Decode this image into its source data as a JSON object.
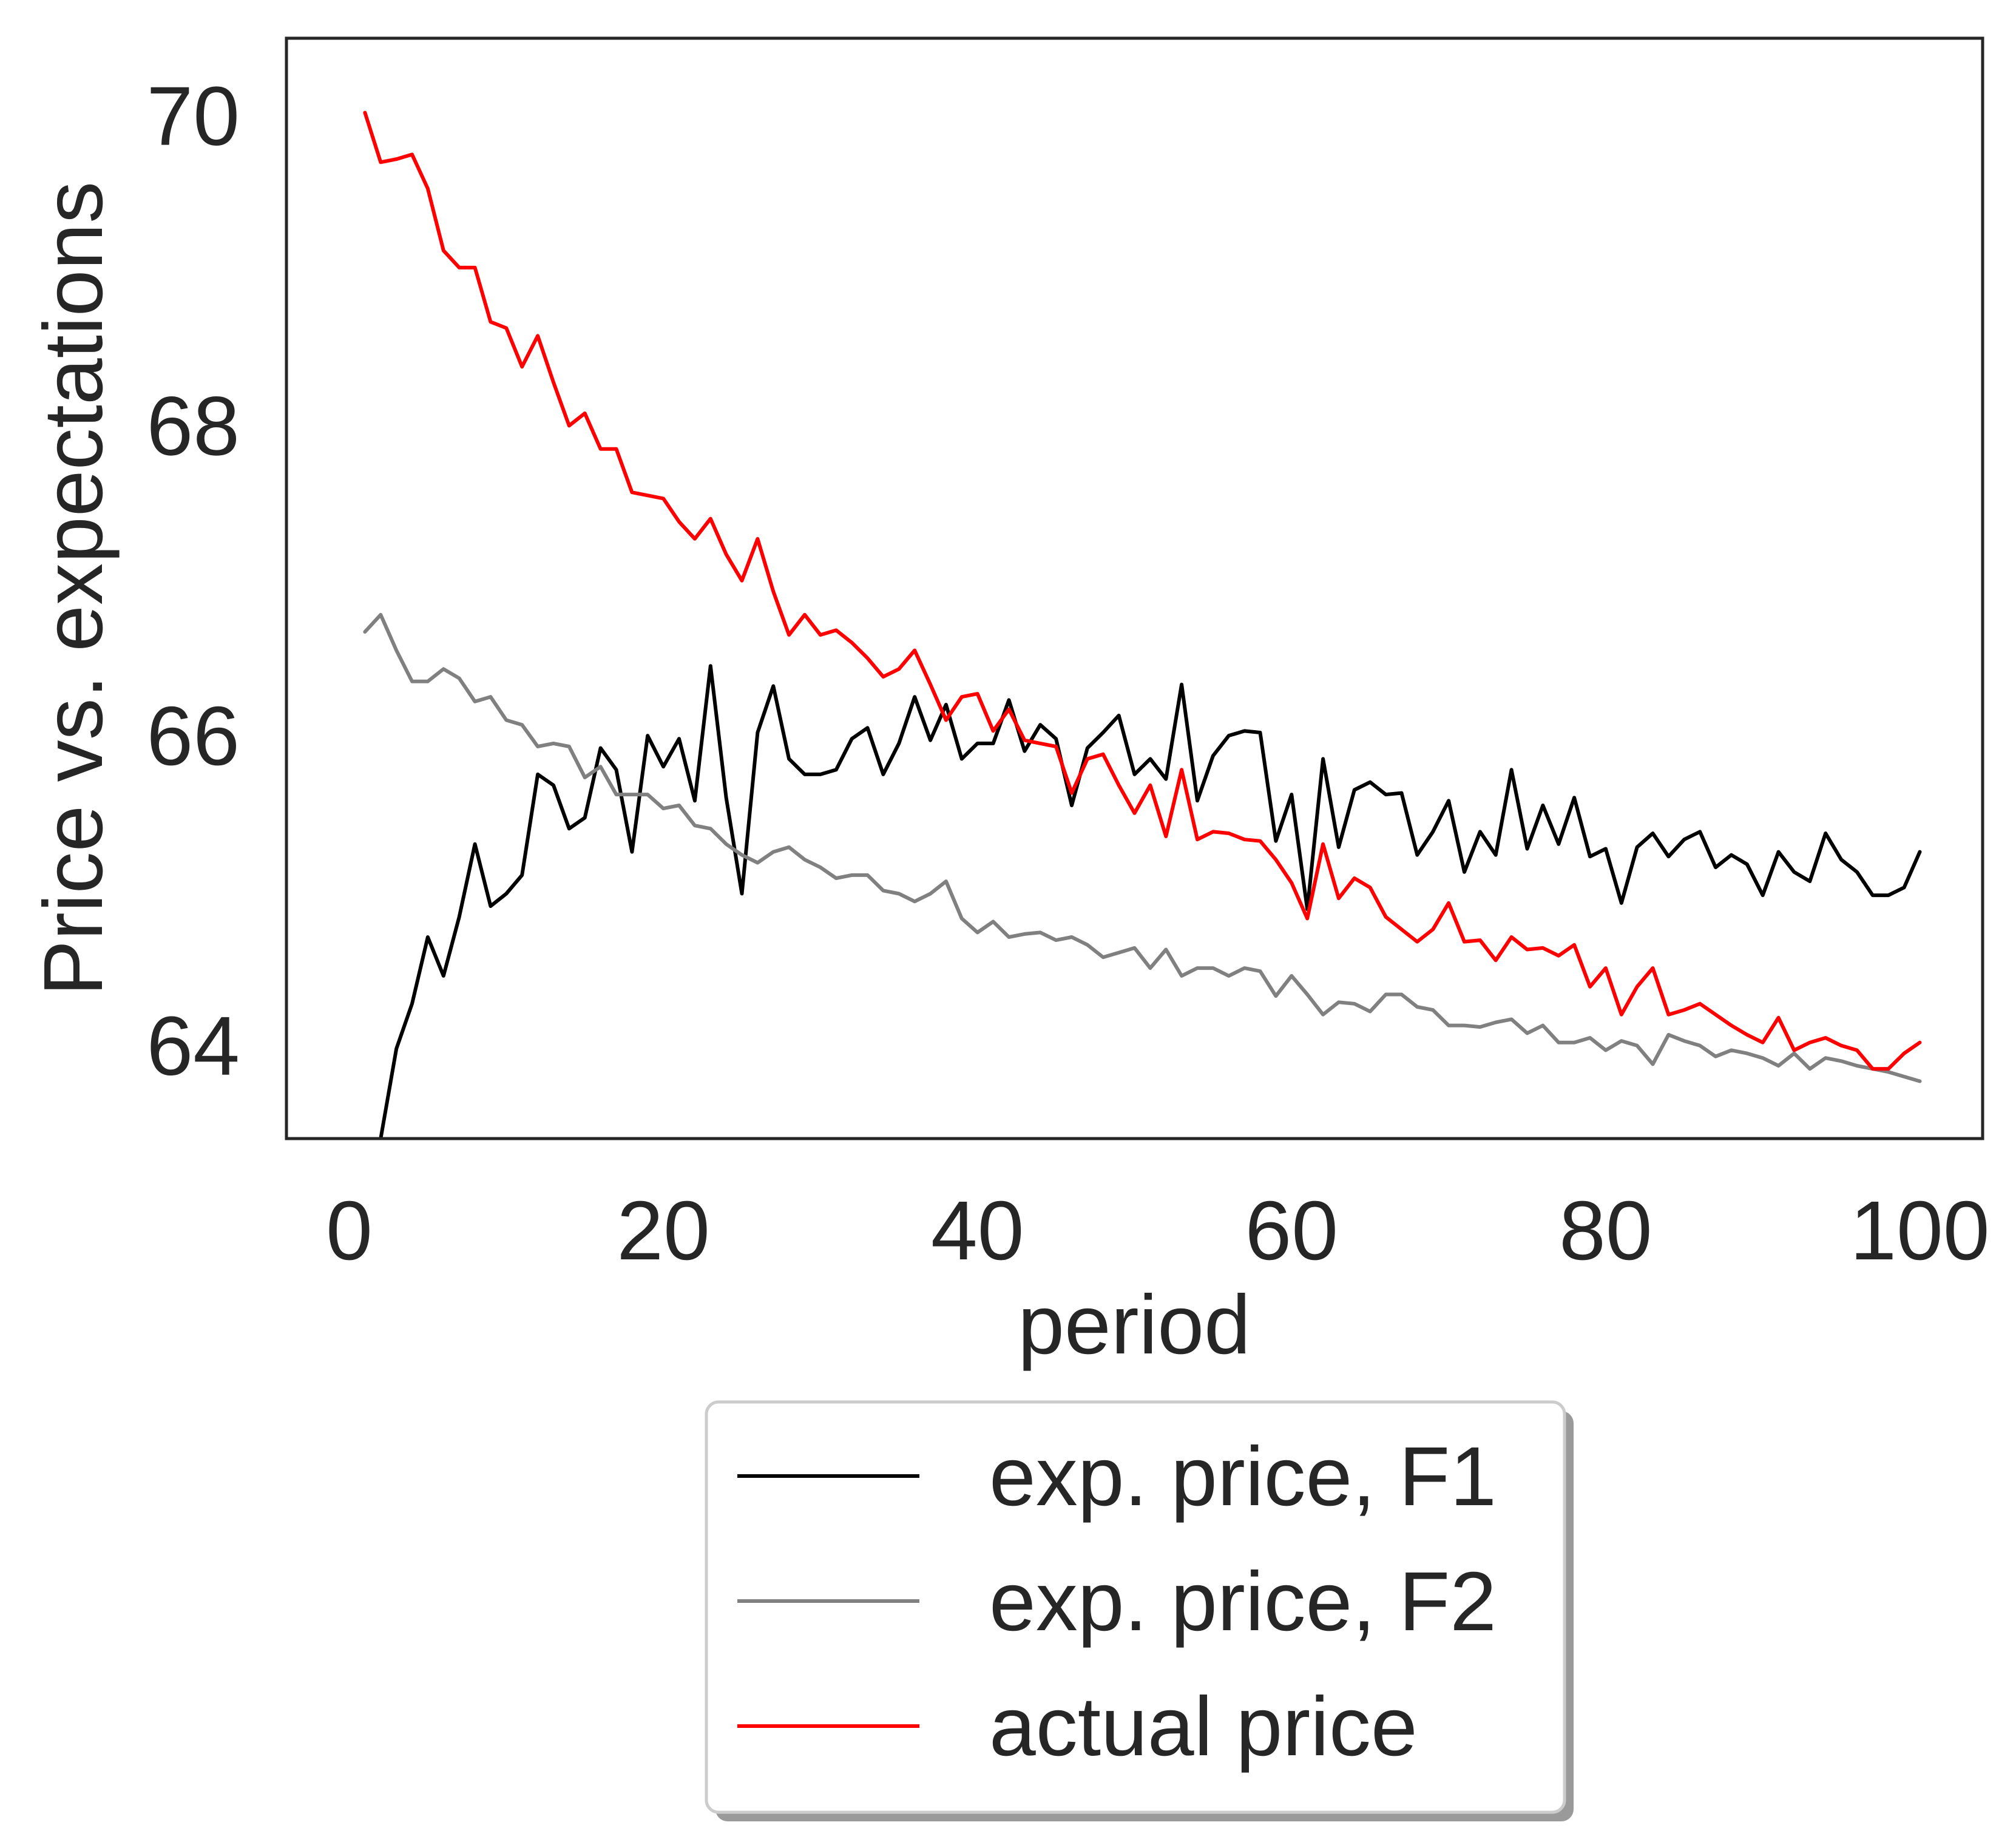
{
  "chart_data": {
    "type": "line",
    "xlabel": "period",
    "ylabel": "Price vs. expectations",
    "xlim": [
      -4,
      104
    ],
    "ylim": [
      63.4,
      70.5
    ],
    "xticks": [
      0,
      20,
      40,
      60,
      80,
      100
    ],
    "yticks": [
      64,
      66,
      68,
      70
    ],
    "grid": false,
    "legend": "below-center",
    "x_start": 1,
    "series": [
      {
        "name": "exp. price, F1",
        "color": "#000000",
        "values": [
          63.05,
          63.4,
          63.98,
          64.27,
          64.7,
          64.45,
          64.83,
          65.3,
          64.9,
          64.98,
          65.1,
          65.75,
          65.68,
          65.4,
          65.47,
          65.92,
          65.78,
          65.25,
          66.0,
          65.8,
          65.98,
          65.58,
          66.45,
          65.6,
          64.98,
          66.02,
          66.32,
          65.85,
          65.75,
          65.75,
          65.78,
          65.98,
          66.05,
          65.75,
          65.95,
          66.25,
          65.97,
          66.2,
          65.85,
          65.95,
          65.95,
          66.23,
          65.9,
          66.07,
          65.98,
          65.55,
          65.92,
          66.02,
          66.13,
          65.75,
          65.85,
          65.72,
          66.33,
          65.58,
          65.87,
          66.0,
          66.03,
          66.02,
          65.32,
          65.62,
          64.88,
          65.85,
          65.28,
          65.65,
          65.7,
          65.62,
          65.63,
          65.23,
          65.38,
          65.58,
          65.12,
          65.38,
          65.23,
          65.78,
          65.27,
          65.55,
          65.3,
          65.6,
          65.22,
          65.27,
          64.92,
          65.28,
          65.37,
          65.22,
          65.33,
          65.38,
          65.15,
          65.23,
          65.17,
          64.97,
          65.25,
          65.12,
          65.06,
          65.37,
          65.2,
          65.12,
          64.97,
          64.97,
          65.02,
          65.25
        ]
      },
      {
        "name": "exp. price, F2",
        "color": "#808080",
        "values": [
          66.67,
          66.78,
          66.55,
          66.35,
          66.35,
          66.43,
          66.37,
          66.22,
          66.25,
          66.1,
          66.07,
          65.93,
          65.95,
          65.93,
          65.73,
          65.8,
          65.62,
          65.62,
          65.62,
          65.53,
          65.55,
          65.42,
          65.4,
          65.3,
          65.23,
          65.18,
          65.25,
          65.28,
          65.2,
          65.15,
          65.08,
          65.1,
          65.1,
          65.0,
          64.98,
          64.93,
          64.98,
          65.06,
          64.82,
          64.73,
          64.8,
          64.7,
          64.72,
          64.73,
          64.68,
          64.7,
          64.65,
          64.57,
          64.6,
          64.63,
          64.5,
          64.62,
          64.45,
          64.5,
          64.5,
          64.45,
          64.5,
          64.48,
          64.32,
          64.45,
          64.33,
          64.2,
          64.28,
          64.27,
          64.22,
          64.33,
          64.33,
          64.25,
          64.23,
          64.13,
          64.13,
          64.12,
          64.15,
          64.17,
          64.08,
          64.13,
          64.02,
          64.02,
          64.05,
          63.97,
          64.03,
          64.0,
          63.88,
          64.07,
          64.03,
          64.0,
          63.93,
          63.97,
          63.95,
          63.92,
          63.87,
          63.95,
          63.85,
          63.92,
          63.9,
          63.87,
          63.85,
          63.83,
          63.8,
          63.77
        ]
      },
      {
        "name": "actual price",
        "color": "#ff0000",
        "values": [
          70.02,
          69.7,
          69.72,
          69.75,
          69.53,
          69.13,
          69.02,
          69.02,
          68.67,
          68.63,
          68.38,
          68.58,
          68.28,
          68.0,
          68.08,
          67.85,
          67.85,
          67.57,
          67.55,
          67.53,
          67.38,
          67.27,
          67.4,
          67.17,
          67.0,
          67.27,
          66.93,
          66.65,
          66.78,
          66.65,
          66.68,
          66.6,
          66.5,
          66.38,
          66.43,
          66.55,
          66.33,
          66.1,
          66.25,
          66.27,
          66.03,
          66.17,
          65.97,
          65.95,
          65.93,
          65.63,
          65.85,
          65.88,
          65.68,
          65.5,
          65.68,
          65.35,
          65.78,
          65.33,
          65.38,
          65.37,
          65.33,
          65.32,
          65.2,
          65.05,
          64.82,
          65.3,
          64.95,
          65.08,
          65.02,
          64.83,
          64.75,
          64.67,
          64.75,
          64.92,
          64.67,
          64.68,
          64.55,
          64.7,
          64.62,
          64.63,
          64.58,
          64.65,
          64.38,
          64.5,
          64.2,
          64.38,
          64.5,
          64.2,
          64.23,
          64.27,
          64.2,
          64.13,
          64.07,
          64.02,
          64.18,
          63.97,
          64.02,
          64.05,
          64.0,
          63.97,
          63.85,
          63.85,
          63.95,
          64.02
        ]
      }
    ]
  }
}
